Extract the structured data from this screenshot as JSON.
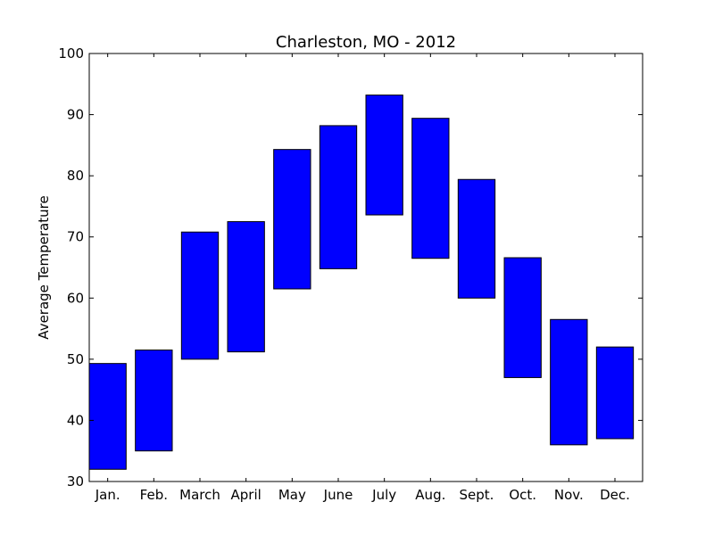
{
  "chart_data": {
    "type": "bar",
    "title": "Charleston, MO - 2012",
    "xlabel": "",
    "ylabel": "Average Temperature",
    "ylim": [
      30,
      100
    ],
    "yticks": [
      30,
      40,
      50,
      60,
      70,
      80,
      90,
      100
    ],
    "categories": [
      "Jan.",
      "Feb.",
      "March",
      "April",
      "May",
      "June",
      "July",
      "Aug.",
      "Sept.",
      "Oct.",
      "Nov.",
      "Dec."
    ],
    "series": [
      {
        "low": [
          32.0,
          35.0,
          50.0,
          51.2,
          61.5,
          64.8,
          73.6,
          66.5,
          60.0,
          47.0,
          36.0,
          37.0
        ],
        "high": [
          49.3,
          51.5,
          70.8,
          72.5,
          84.3,
          88.2,
          93.2,
          89.4,
          79.4,
          66.6,
          56.5,
          52.0
        ]
      }
    ],
    "bar_color": "#0000ff",
    "grid": false,
    "legend": "none"
  }
}
